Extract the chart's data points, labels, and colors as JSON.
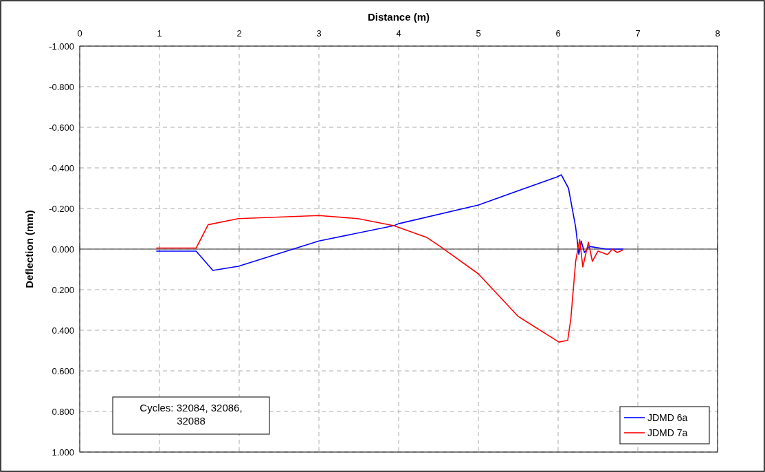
{
  "chart_data": {
    "type": "line",
    "xlabel": "Distance (m)",
    "ylabel": "Deflection (mm)",
    "xlim": [
      0,
      8
    ],
    "xticks": [
      0,
      1,
      2,
      3,
      4,
      5,
      6,
      7,
      8
    ],
    "ylim": [
      1,
      -1
    ],
    "yticks": [
      {
        "value": -1,
        "label": "-1.000"
      },
      {
        "value": -0.8,
        "label": "-0.800"
      },
      {
        "value": -0.6,
        "label": "-0.600"
      },
      {
        "value": -0.4,
        "label": "-0.400"
      },
      {
        "value": -0.2,
        "label": "-0.200"
      },
      {
        "value": 0,
        "label": "0.000"
      },
      {
        "value": 0.2,
        "label": "0.200"
      },
      {
        "value": 0.4,
        "label": "0.400"
      },
      {
        "value": 0.6,
        "label": "0.600"
      },
      {
        "value": 0.8,
        "label": "0.800"
      },
      {
        "value": 1,
        "label": "1.000"
      }
    ],
    "grid": true,
    "legend": "bottom right",
    "marker": "none",
    "line_style": "solid",
    "ref_lines": [
      {
        "axis": "y",
        "value": 0,
        "color": "#707070"
      }
    ],
    "annotations": [
      "Cycles: 32084, 32086, 32088"
    ],
    "series": [
      {
        "name": "JDMD 6a",
        "color": "#0000ff",
        "x": [
          0.96,
          1.2,
          1.46,
          1.67,
          1.99,
          3.0,
          3.94,
          4.0,
          5.0,
          5.99,
          6.04,
          6.13,
          6.22,
          6.26,
          6.29,
          6.33,
          6.39,
          6.6,
          6.82
        ],
        "values": [
          0.01,
          0.01,
          0.01,
          0.105,
          0.085,
          -0.04,
          -0.115,
          -0.125,
          -0.217,
          -0.356,
          -0.366,
          -0.3,
          -0.108,
          0.027,
          -0.04,
          0.017,
          -0.013,
          0,
          0
        ]
      },
      {
        "name": "JDMD 7a",
        "color": "#ff0000",
        "x": [
          0.96,
          1.2,
          1.46,
          1.61,
          1.99,
          3.0,
          3.49,
          3.94,
          4.35,
          4.52,
          5.0,
          5.5,
          6.01,
          6.12,
          6.16,
          6.22,
          6.27,
          6.31,
          6.38,
          6.43,
          6.5,
          6.62,
          6.68,
          6.74,
          6.81
        ],
        "values": [
          -0.005,
          -0.005,
          -0.005,
          -0.12,
          -0.15,
          -0.165,
          -0.15,
          -0.115,
          -0.058,
          -0.013,
          0.122,
          0.332,
          0.458,
          0.45,
          0.342,
          0.061,
          -0.047,
          0.088,
          -0.034,
          0.061,
          0.01,
          0.027,
          0,
          0.017,
          0.005
        ]
      }
    ]
  }
}
